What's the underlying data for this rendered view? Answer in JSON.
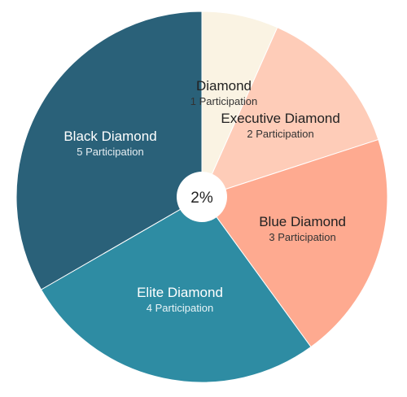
{
  "chart_data": {
    "type": "pie",
    "title": "",
    "center_label": "2%",
    "slices": [
      {
        "label": "Diamond",
        "sub": "1 Participation",
        "value": 1,
        "color": "#FAF3E3",
        "text_color": "#222222",
        "sub_color": "#333333"
      },
      {
        "label": "Executive Diamond",
        "sub": "2 Participation",
        "value": 2,
        "color": "#FECCB8",
        "text_color": "#222222",
        "sub_color": "#333333"
      },
      {
        "label": "Blue Diamond",
        "sub": "3 Participation",
        "value": 3,
        "color": "#FEAA90",
        "text_color": "#222222",
        "sub_color": "#333333"
      },
      {
        "label": "Elite Diamond",
        "sub": "4 Participation",
        "value": 4,
        "color": "#2E8CA3",
        "text_color": "#ffffff",
        "sub_color": "#e8f4f7"
      },
      {
        "label": "Black Diamond",
        "sub": "5 Participation",
        "value": 5,
        "color": "#2A6179",
        "text_color": "#ffffff",
        "sub_color": "#e6eef2"
      }
    ]
  }
}
